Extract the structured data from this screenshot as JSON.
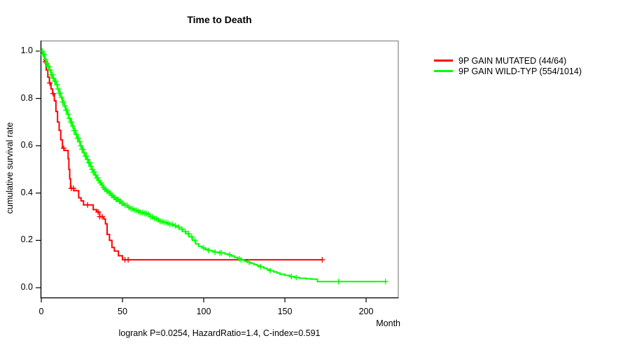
{
  "chart": {
    "title": "Time to Death",
    "ylabel": "cumulative survival rate",
    "xlabel": "Month",
    "annotation": "logrank P=0.0254, HazardRatio=1.4, C-index=0.591",
    "legend": [
      {
        "label": "9P GAIN MUTATED (44/64)",
        "color": "#ff0000"
      },
      {
        "label": "9P GAIN WILD-TYP (554/1014)",
        "color": "#00ff00"
      }
    ]
  },
  "chart_data": {
    "type": "line",
    "subtype": "kaplan-meier-step",
    "title": "Time to Death",
    "xlabel": "Month",
    "ylabel": "cumulative survival rate",
    "xlim": [
      0,
      220
    ],
    "ylim": [
      0.0,
      1.0
    ],
    "x_ticks": [
      0,
      50,
      100,
      150,
      200
    ],
    "y_ticks": [
      0.0,
      0.2,
      0.4,
      0.6,
      0.8,
      1.0
    ],
    "grid": false,
    "legend_position": "right-outside",
    "annotation": "logrank P=0.0254, HazardRatio=1.4, C-index=0.591",
    "frame_color": "#858585",
    "axis_color": "#000000",
    "series": [
      {
        "name": "9P GAIN MUTATED (44/64)",
        "color": "#ff0000",
        "steps": [
          [
            0,
            1.0
          ],
          [
            1,
            0.985
          ],
          [
            2,
            0.955
          ],
          [
            3,
            0.92
          ],
          [
            4,
            0.89
          ],
          [
            5,
            0.865
          ],
          [
            6,
            0.84
          ],
          [
            7,
            0.82
          ],
          [
            8,
            0.79
          ],
          [
            9,
            0.745
          ],
          [
            10,
            0.7
          ],
          [
            11,
            0.665
          ],
          [
            12,
            0.625
          ],
          [
            13,
            0.59
          ],
          [
            14,
            0.58
          ],
          [
            16.5,
            0.545
          ],
          [
            17,
            0.5
          ],
          [
            17.5,
            0.46
          ],
          [
            18,
            0.42
          ],
          [
            20,
            0.41
          ],
          [
            23,
            0.38
          ],
          [
            24.5,
            0.367
          ],
          [
            26,
            0.35
          ],
          [
            32,
            0.33
          ],
          [
            34,
            0.32
          ],
          [
            36,
            0.3
          ],
          [
            38.5,
            0.29
          ],
          [
            39.5,
            0.27
          ],
          [
            40.5,
            0.225
          ],
          [
            42,
            0.2
          ],
          [
            43.5,
            0.17
          ],
          [
            45,
            0.155
          ],
          [
            47.5,
            0.135
          ],
          [
            50,
            0.118
          ],
          [
            173,
            0.118
          ]
        ],
        "censor_ticks": [
          2.6,
          5.2,
          7.3,
          13.8,
          18.5,
          19.8,
          28.5,
          35,
          36,
          37.5,
          51.5,
          53.5,
          173
        ]
      },
      {
        "name": "9P GAIN WILD-TYP (554/1014)",
        "color": "#00ff00",
        "steps": [
          [
            0,
            1.0
          ],
          [
            1,
            0.985
          ],
          [
            2,
            0.965
          ],
          [
            3,
            0.948
          ],
          [
            4,
            0.935
          ],
          [
            5,
            0.92
          ],
          [
            6,
            0.9
          ],
          [
            7,
            0.885
          ],
          [
            8,
            0.873
          ],
          [
            9,
            0.858
          ],
          [
            10,
            0.84
          ],
          [
            11,
            0.822
          ],
          [
            12,
            0.805
          ],
          [
            13,
            0.785
          ],
          [
            14,
            0.768
          ],
          [
            15,
            0.75
          ],
          [
            16,
            0.733
          ],
          [
            17,
            0.716
          ],
          [
            18,
            0.7
          ],
          [
            19,
            0.683
          ],
          [
            20,
            0.664
          ],
          [
            21,
            0.648
          ],
          [
            22,
            0.632
          ],
          [
            23,
            0.617
          ],
          [
            24,
            0.6
          ],
          [
            25,
            0.585
          ],
          [
            26,
            0.57
          ],
          [
            27,
            0.556
          ],
          [
            28,
            0.542
          ],
          [
            29,
            0.528
          ],
          [
            30,
            0.513
          ],
          [
            31,
            0.5
          ],
          [
            32,
            0.488
          ],
          [
            33,
            0.476
          ],
          [
            34,
            0.464
          ],
          [
            35,
            0.453
          ],
          [
            36,
            0.443
          ],
          [
            37,
            0.433
          ],
          [
            38,
            0.424
          ],
          [
            39,
            0.416
          ],
          [
            40,
            0.408
          ],
          [
            41.5,
            0.4
          ],
          [
            43,
            0.39
          ],
          [
            44.5,
            0.382
          ],
          [
            46,
            0.373
          ],
          [
            47.5,
            0.365
          ],
          [
            49,
            0.357
          ],
          [
            51,
            0.348
          ],
          [
            53,
            0.34
          ],
          [
            55,
            0.333
          ],
          [
            57,
            0.327
          ],
          [
            59,
            0.322
          ],
          [
            61,
            0.318
          ],
          [
            63,
            0.314
          ],
          [
            65,
            0.31
          ],
          [
            67,
            0.3
          ],
          [
            69,
            0.292
          ],
          [
            71,
            0.286
          ],
          [
            73,
            0.28
          ],
          [
            75,
            0.276
          ],
          [
            77,
            0.272
          ],
          [
            79,
            0.268
          ],
          [
            81,
            0.262
          ],
          [
            83,
            0.256
          ],
          [
            85,
            0.248
          ],
          [
            87,
            0.238
          ],
          [
            89,
            0.228
          ],
          [
            91,
            0.215
          ],
          [
            93,
            0.2
          ],
          [
            95,
            0.185
          ],
          [
            97,
            0.175
          ],
          [
            99,
            0.168
          ],
          [
            101,
            0.162
          ],
          [
            103,
            0.158
          ],
          [
            105,
            0.154
          ],
          [
            107,
            0.15
          ],
          [
            110,
            0.147
          ],
          [
            113,
            0.143
          ],
          [
            115,
            0.139
          ],
          [
            117,
            0.134
          ],
          [
            119,
            0.128
          ],
          [
            121,
            0.122
          ],
          [
            123,
            0.117
          ],
          [
            125,
            0.112
          ],
          [
            127,
            0.107
          ],
          [
            129,
            0.103
          ],
          [
            131,
            0.098
          ],
          [
            133,
            0.093
          ],
          [
            135,
            0.088
          ],
          [
            137,
            0.082
          ],
          [
            139,
            0.077
          ],
          [
            141,
            0.072
          ],
          [
            143,
            0.067
          ],
          [
            145,
            0.062
          ],
          [
            147,
            0.057
          ],
          [
            150,
            0.052
          ],
          [
            153,
            0.047
          ],
          [
            156,
            0.043
          ],
          [
            159,
            0.04
          ],
          [
            163,
            0.038
          ],
          [
            166,
            0.036
          ],
          [
            170,
            0.026
          ],
          [
            212,
            0.026
          ]
        ],
        "censor_ticks": [
          0.5,
          1.2,
          1.9,
          2.6,
          3.3,
          4,
          4.7,
          5.4,
          6.1,
          6.8,
          7.5,
          8.2,
          8.9,
          9.6,
          10.3,
          11,
          11.7,
          12.4,
          13.1,
          13.8,
          14.5,
          15.2,
          15.9,
          16.6,
          17.3,
          18,
          18.7,
          19.4,
          20.1,
          20.8,
          21.5,
          22.2,
          22.9,
          23.6,
          24.3,
          25,
          25.7,
          26.4,
          27.1,
          27.8,
          28.5,
          29.2,
          29.9,
          30.6,
          31.3,
          32,
          32.7,
          33.4,
          34.1,
          34.8,
          35.5,
          36.2,
          36.9,
          37.6,
          38.3,
          39,
          39.7,
          40.4,
          41.1,
          41.8,
          42.5,
          43.2,
          43.9,
          44.6,
          45.3,
          46,
          46.7,
          47.4,
          48.1,
          48.8,
          49.5,
          50.4,
          51.6,
          52.8,
          54,
          55.2,
          56.4,
          57.6,
          58.8,
          60,
          61.2,
          62.4,
          63.6,
          64.8,
          66,
          67.2,
          68.4,
          69.6,
          70.8,
          72,
          73.2,
          74.4,
          75.6,
          76.8,
          78,
          79.2,
          80.6,
          82.6,
          84.6,
          86.6,
          88.6,
          90.6,
          92.6,
          94.6,
          100,
          103,
          107,
          110,
          111,
          116,
          122,
          123,
          128,
          135,
          141,
          154,
          157,
          183,
          212
        ]
      }
    ]
  }
}
